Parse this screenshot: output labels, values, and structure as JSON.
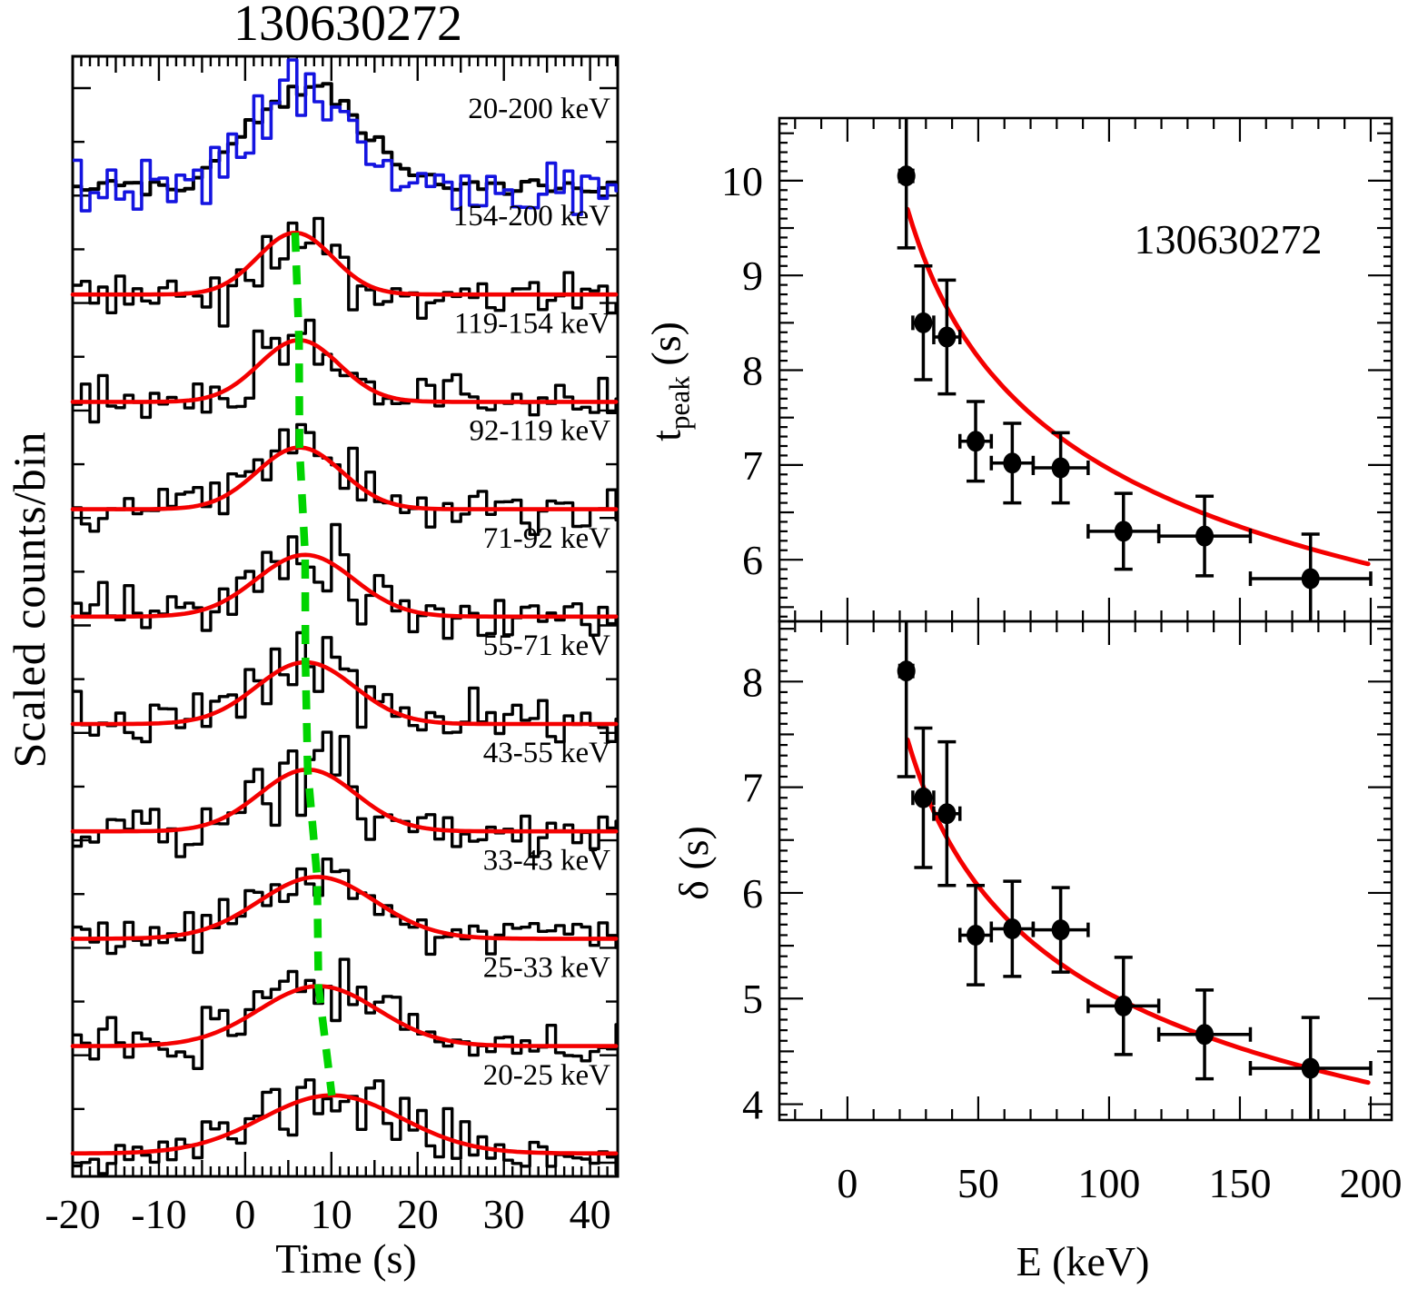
{
  "colors": {
    "frame": "#000000",
    "histogram": "#000000",
    "overlay_histogram": "#1414e0",
    "fit_curve": "#f40000",
    "peak_track_line": "#00d400",
    "marker": "#000000",
    "background": "#ffffff"
  },
  "chart_data": [
    {
      "id": "light_curves",
      "type": "line",
      "title": "130630272",
      "xlabel": "Time (s)",
      "ylabel": "Scaled counts/bin",
      "x_range": [
        -20,
        43.2
      ],
      "x_ticks": [
        -20,
        -10,
        0,
        10,
        20,
        30,
        40
      ],
      "bin_width_s": 1,
      "note_units": "t_peak and sigma in seconds; amp/noise in scaled counts (px)",
      "bands": [
        {
          "label": "20-200 keV",
          "histograms": [
            {
              "color_key": "histogram",
              "t_peak": 7.2,
              "sigma": 6.1,
              "amp": 113,
              "noise": 4.5,
              "seed": 101
            },
            {
              "color_key": "overlay_histogram",
              "t_peak": 6.5,
              "sigma": 5.3,
              "amp": 100,
              "noise": 15,
              "seed": 202
            }
          ],
          "has_fit": false
        },
        {
          "label": "154-200 keV",
          "t_peak": 5.8,
          "sigma": 4.34,
          "amp": 68,
          "noise": 13,
          "seed": 3,
          "has_fit": true
        },
        {
          "label": "119-154 keV",
          "t_peak": 6.25,
          "sigma": 4.66,
          "amp": 68,
          "noise": 13,
          "seed": 4,
          "has_fit": true
        },
        {
          "label": "92-119 keV",
          "t_peak": 6.3,
          "sigma": 4.93,
          "amp": 68,
          "noise": 13,
          "seed": 5,
          "has_fit": true
        },
        {
          "label": "71-92 keV",
          "t_peak": 6.95,
          "sigma": 5.65,
          "amp": 68,
          "noise": 13,
          "seed": 6,
          "has_fit": true
        },
        {
          "label": "55-71 keV",
          "t_peak": 7.0,
          "sigma": 5.66,
          "amp": 68,
          "noise": 13,
          "seed": 7,
          "has_fit": true
        },
        {
          "label": "43-55 keV",
          "t_peak": 7.25,
          "sigma": 5.6,
          "amp": 68,
          "noise": 12,
          "seed": 8,
          "has_fit": true
        },
        {
          "label": "33-43 keV",
          "t_peak": 8.35,
          "sigma": 6.75,
          "amp": 68,
          "noise": 12,
          "seed": 9,
          "has_fit": true
        },
        {
          "label": "25-33 keV",
          "t_peak": 8.5,
          "sigma": 6.9,
          "amp": 66,
          "noise": 12,
          "seed": 10,
          "has_fit": true
        },
        {
          "label": "20-25 keV",
          "t_peak": 10.05,
          "sigma": 8.1,
          "amp": 64,
          "noise": 12,
          "seed": 11,
          "has_fit": true
        }
      ],
      "green_line_band_indices": [
        1,
        2,
        3,
        4,
        5,
        6,
        7,
        8,
        9
      ]
    },
    {
      "id": "tpeak_vs_E",
      "type": "scatter",
      "annotation": "130630272",
      "xlabel": "E (keV)",
      "ylabel": {
        "pre": "t",
        "sub": "peak",
        "post": " (s)"
      },
      "x_range": [
        -26,
        208
      ],
      "y_range": [
        5.35,
        10.66
      ],
      "x_ticks": [
        0,
        50,
        100,
        150,
        200
      ],
      "y_ticks": [
        6,
        7,
        8,
        9,
        10
      ],
      "points": [
        {
          "E": 22.5,
          "E_lo": 20,
          "E_hi": 25,
          "y": 10.05,
          "err": 0.76
        },
        {
          "E": 29,
          "E_lo": 25,
          "E_hi": 33,
          "y": 8.5,
          "err": 0.6
        },
        {
          "E": 38,
          "E_lo": 33,
          "E_hi": 43,
          "y": 8.35,
          "err": 0.6
        },
        {
          "E": 49,
          "E_lo": 43,
          "E_hi": 55,
          "y": 7.25,
          "err": 0.42
        },
        {
          "E": 63,
          "E_lo": 55,
          "E_hi": 71,
          "y": 7.02,
          "err": 0.42
        },
        {
          "E": 81.5,
          "E_lo": 71,
          "E_hi": 92,
          "y": 6.97,
          "err": 0.37
        },
        {
          "E": 105.5,
          "E_lo": 92,
          "E_hi": 119,
          "y": 6.3,
          "err": 0.4
        },
        {
          "E": 136.5,
          "E_lo": 119,
          "E_hi": 154,
          "y": 6.25,
          "err": 0.42
        },
        {
          "E": 177,
          "E_lo": 154,
          "E_hi": 200,
          "y": 5.8,
          "err": 0.47
        }
      ],
      "fit": {
        "form": "a*E^-b",
        "a": 19.7,
        "b": 0.226,
        "E_range": [
          23,
          200
        ]
      }
    },
    {
      "id": "delta_vs_E",
      "type": "scatter",
      "xlabel": "E (keV)",
      "ylabel": "δ (s)",
      "x_range": [
        -26,
        208
      ],
      "y_range": [
        3.85,
        8.57
      ],
      "x_ticks": [
        0,
        50,
        100,
        150,
        200
      ],
      "y_ticks": [
        4,
        5,
        6,
        7,
        8
      ],
      "points": [
        {
          "E": 22.5,
          "E_lo": 20,
          "E_hi": 25,
          "y": 8.1,
          "err": 1.0
        },
        {
          "E": 29,
          "E_lo": 25,
          "E_hi": 33,
          "y": 6.9,
          "err": 0.66
        },
        {
          "E": 38,
          "E_lo": 33,
          "E_hi": 43,
          "y": 6.75,
          "err": 0.68
        },
        {
          "E": 49,
          "E_lo": 43,
          "E_hi": 55,
          "y": 5.6,
          "err": 0.47
        },
        {
          "E": 63,
          "E_lo": 55,
          "E_hi": 71,
          "y": 5.66,
          "err": 0.45
        },
        {
          "E": 81.5,
          "E_lo": 71,
          "E_hi": 92,
          "y": 5.65,
          "err": 0.4
        },
        {
          "E": 105.5,
          "E_lo": 92,
          "E_hi": 119,
          "y": 4.93,
          "err": 0.46
        },
        {
          "E": 136.5,
          "E_lo": 119,
          "E_hi": 154,
          "y": 4.66,
          "err": 0.42
        },
        {
          "E": 177,
          "E_lo": 154,
          "E_hi": 200,
          "y": 4.34,
          "err": 0.48
        }
      ],
      "fit": {
        "form": "a*E^-b",
        "a": 17.1,
        "b": 0.265,
        "E_range": [
          23,
          200
        ]
      }
    }
  ]
}
